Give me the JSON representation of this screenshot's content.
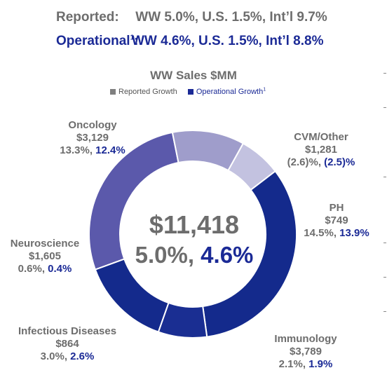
{
  "header": {
    "reported_label": "Reported:",
    "reported_value": "WW 5.0%, U.S. 1.5%, Int’l 9.7%",
    "operational_label": "Operational",
    "operational_sup": "1",
    "operational_colon": ":",
    "operational_value": "WW 4.6%, U.S. 1.5%, Int’l 8.8%"
  },
  "colors": {
    "reported_gray": "#6d6d6d",
    "operational_blue": "#1b2a96"
  },
  "chart_data": {
    "type": "pie",
    "title": "WW Sales $MM",
    "legend": [
      {
        "name": "Reported Growth",
        "color": "#7f7f7f"
      },
      {
        "name": "Operational Growth",
        "sup": "1",
        "color": "#1b2a96"
      }
    ],
    "total": "$11,418",
    "total_reported_growth": "5.0%,",
    "total_operational_growth": "4.6%",
    "segments": [
      {
        "name": "Oncology",
        "value": 3129,
        "value_label": "$3,129",
        "reported": "13.3%,",
        "operational": "12.4%",
        "color": "#5b59ab"
      },
      {
        "name": "CVM/Other",
        "value": 1281,
        "value_label": "$1,281",
        "reported": "(2.6)%,",
        "operational": "(2.5)%",
        "color": "#9f9dcb"
      },
      {
        "name": "PH",
        "value": 749,
        "value_label": "$749",
        "reported": "14.5%,",
        "operational": "13.9%",
        "color": "#c3c2e0"
      },
      {
        "name": "Immunology",
        "value": 3789,
        "value_label": "$3,789",
        "reported": "2.1%,",
        "operational": "1.9%",
        "color": "#142a8c"
      },
      {
        "name": "Infectious Diseases",
        "value": 864,
        "value_label": "$864",
        "reported": "3.0%,",
        "operational": "2.6%",
        "color": "#1a2e92"
      },
      {
        "name": "Neuroscience",
        "value": 1605,
        "value_label": "$1,605",
        "reported": "0.6%,",
        "operational": "0.4%",
        "color": "#142a8c"
      }
    ]
  }
}
